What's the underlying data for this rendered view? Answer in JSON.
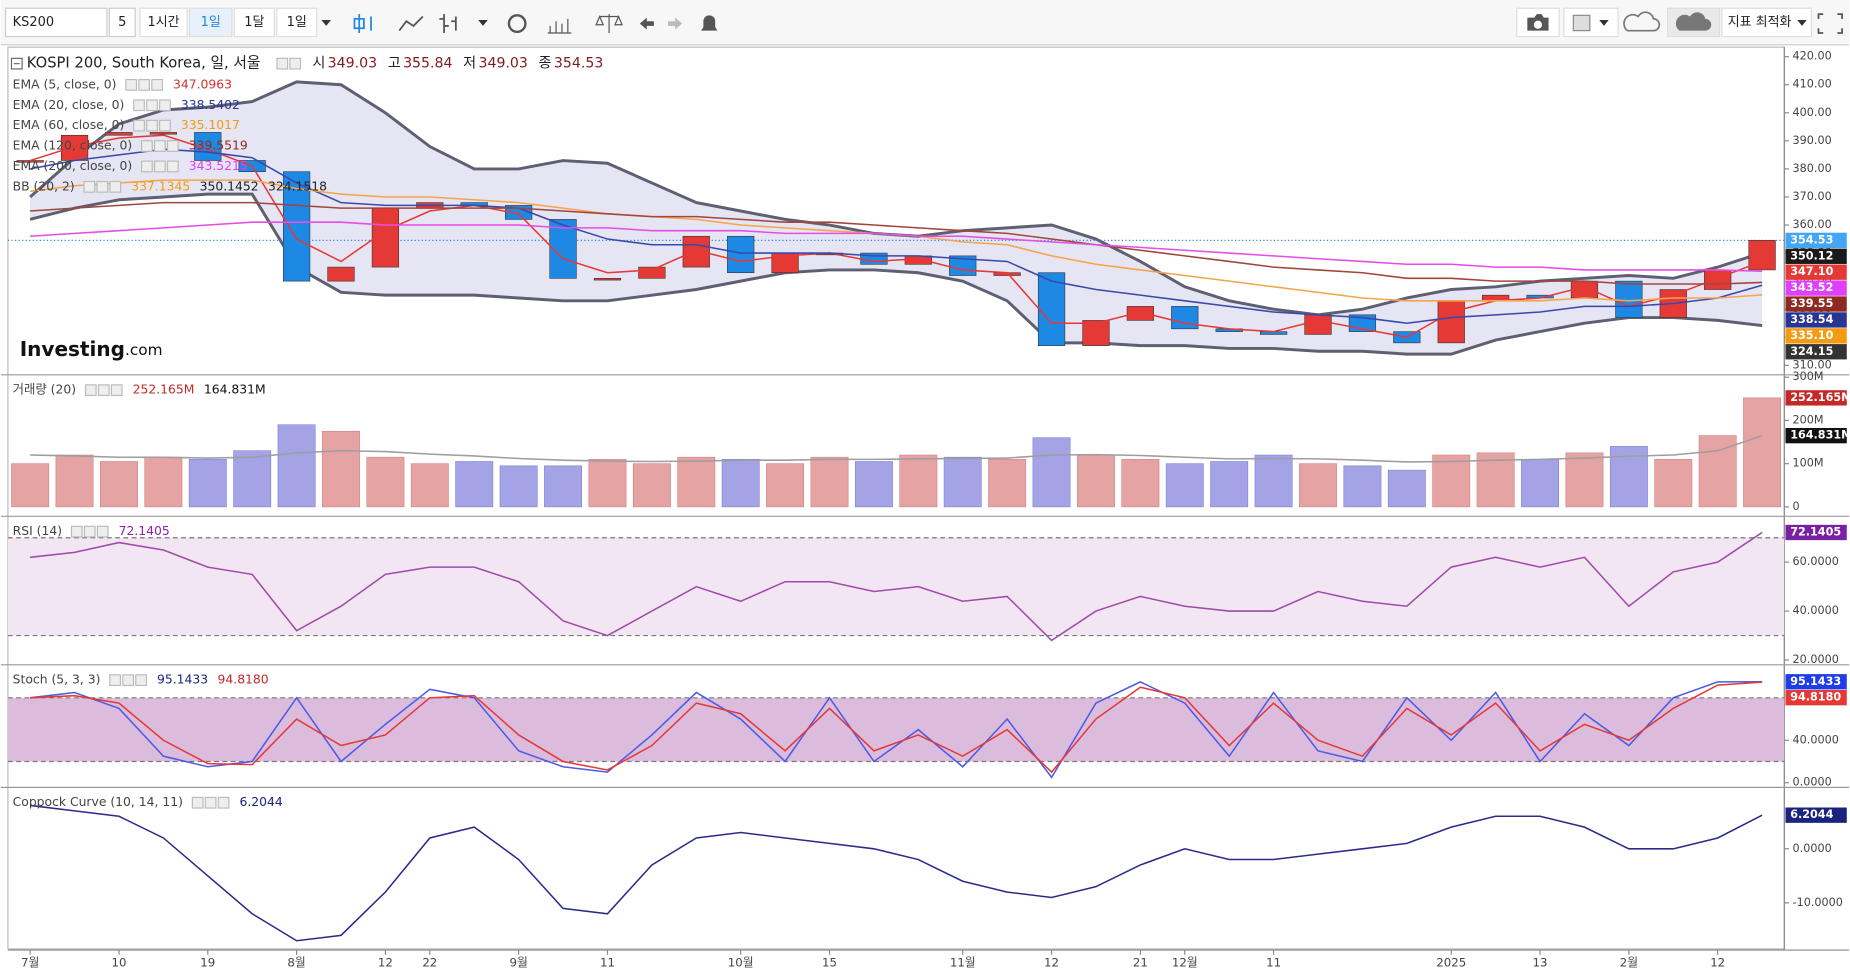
{
  "toolbar": {
    "symbol": "KS200",
    "interval": "5",
    "buttons": [
      "1시간",
      "1일",
      "1달",
      "1일"
    ],
    "right_button": "지표 최적화"
  },
  "watermark": [
    "Investing",
    ".com"
  ],
  "chart_data": [
    {
      "type": "candlestick",
      "title": "KOSPI 200, South Korea, 일, 서울",
      "ohlc_labels": [
        "시",
        "고",
        "저",
        "종"
      ],
      "ohlc_values": [
        349.03,
        355.84,
        349.03,
        354.53
      ],
      "categories": [
        "7월",
        null,
        "10",
        null,
        "19",
        null,
        "8월",
        null,
        "12",
        "22",
        null,
        "9월",
        null,
        "11",
        null,
        null,
        "10월",
        null,
        "15",
        null,
        null,
        "11월",
        null,
        "12",
        null,
        "21",
        "12월",
        null,
        "11",
        null,
        null,
        null,
        "2025",
        null,
        "13",
        null,
        "2월",
        null,
        "12",
        null
      ],
      "values": [
        383,
        392,
        393,
        393,
        383,
        379,
        340,
        345,
        366,
        368,
        367,
        362,
        341,
        341,
        345,
        356,
        343,
        350,
        350,
        346,
        349,
        342,
        343,
        317,
        326,
        331,
        323,
        322,
        321,
        328,
        322,
        318,
        333,
        335,
        334,
        340,
        327,
        337,
        344,
        354.53
      ],
      "up_color": "#e53935",
      "down_color": "#1e88e5",
      "ylim": [
        306.6,
        423.4
      ],
      "yticks": [
        {
          "value": 310,
          "label": "310.00"
        },
        {
          "value": 320,
          "label": "320.00"
        },
        {
          "value": 330,
          "label": "330.00"
        },
        {
          "value": 340,
          "label": "340.00"
        },
        {
          "value": 350,
          "label": "350.00"
        },
        {
          "value": 360,
          "label": "360.00"
        },
        {
          "value": 370,
          "label": "370.00"
        },
        {
          "value": 380,
          "label": "380.00"
        },
        {
          "value": 390,
          "label": "390.00"
        },
        {
          "value": 400,
          "label": "400.00"
        },
        {
          "value": 410,
          "label": "410.00"
        },
        {
          "value": 420,
          "label": "420.00"
        }
      ],
      "legend": [
        {
          "name": "EMA (5, close, 0)",
          "values": [
            347.0963
          ],
          "colors": [
            "#d32f2f"
          ]
        },
        {
          "name": "EMA (20, close, 0)",
          "values": [
            338.5402
          ],
          "colors": [
            "#283593"
          ]
        },
        {
          "name": "EMA (60, close, 0)",
          "values": [
            335.1017
          ],
          "colors": [
            "#f39c12"
          ]
        },
        {
          "name": "EMA (120, close, 0)",
          "values": [
            339.5519
          ],
          "colors": [
            "#8e2a22"
          ]
        },
        {
          "name": "EMA (200, close, 0)",
          "values": [
            343.5215
          ],
          "colors": [
            "#e040fb"
          ]
        },
        {
          "name": "BB (20, 2)",
          "values": [
            337.1345,
            350.1452,
            324.1518
          ],
          "colors": [
            "#f39c12",
            "#222222",
            "#222222"
          ]
        }
      ],
      "band": {
        "color": "#5f5f72",
        "fill": "#dcdcf0",
        "upper": [
          370,
          384,
          396,
          401,
          402,
          404,
          411,
          410,
          400,
          388,
          380,
          380,
          383,
          382,
          375,
          368,
          365,
          362,
          360,
          357,
          356,
          358,
          359,
          360,
          355,
          347,
          338,
          333,
          330,
          328,
          330,
          334,
          337,
          338,
          340,
          341,
          342,
          341,
          345,
          350.12
        ],
        "lower": [
          362,
          366,
          369,
          370,
          371,
          371,
          345,
          336,
          335,
          335,
          335,
          334,
          333,
          333,
          335,
          337,
          340,
          343,
          344,
          344,
          343,
          340,
          333,
          318,
          318,
          317,
          317,
          316,
          316,
          315,
          315,
          314,
          314,
          319,
          322,
          325,
          327,
          327,
          326,
          324.15
        ]
      },
      "series": [
        {
          "color": "#e53935",
          "values": [
            383,
            388,
            391,
            392,
            387,
            381,
            355,
            347,
            358,
            365,
            367,
            364,
            348,
            343,
            344,
            351,
            347,
            349,
            350,
            347,
            348,
            344,
            343,
            325,
            325,
            329,
            325,
            323,
            322,
            326,
            323,
            320,
            329,
            333,
            334,
            338,
            331,
            335,
            341,
            347.1
          ]
        },
        {
          "color": "#3949ab",
          "values": [
            380,
            383,
            385,
            387,
            386,
            384,
            375,
            368,
            367,
            367,
            367,
            366,
            360,
            355,
            353,
            353,
            350,
            350,
            350,
            349,
            349,
            348,
            347,
            340,
            337,
            335,
            333,
            331,
            329,
            328,
            327,
            325,
            327,
            328,
            329,
            331,
            331,
            332,
            334,
            338.54
          ]
        },
        {
          "color": "#f6a44a",
          "values": [
            372,
            374,
            375,
            376,
            376,
            376,
            373,
            371,
            370,
            370,
            369,
            368,
            366,
            364,
            363,
            362,
            360,
            359,
            358,
            357,
            356,
            354,
            353,
            349,
            346,
            344,
            342,
            340,
            338,
            336,
            334,
            333,
            333,
            333,
            333,
            334,
            333,
            334,
            334,
            335.1
          ]
        },
        {
          "color": "#a0463c",
          "values": [
            365,
            366,
            367,
            368,
            368,
            368,
            367,
            366,
            366,
            366,
            366,
            366,
            365,
            364,
            363,
            363,
            362,
            361,
            361,
            360,
            359,
            358,
            357,
            355,
            353,
            351,
            349,
            347,
            345,
            344,
            343,
            341,
            341,
            340,
            340,
            340,
            339,
            339,
            339,
            339.55
          ]
        },
        {
          "color": "#e64ce6",
          "values": [
            356,
            357,
            358,
            359,
            360,
            361,
            361,
            361,
            360,
            360,
            360,
            360,
            359,
            359,
            358,
            358,
            358,
            357,
            357,
            357,
            356,
            356,
            355,
            354,
            353,
            352,
            351,
            350,
            349,
            348,
            347,
            346,
            346,
            345,
            345,
            344,
            344,
            344,
            344,
            343.52
          ]
        }
      ],
      "tags": [
        {
          "value": 354.53,
          "color": "#42a5f5"
        },
        {
          "value": 350.12,
          "color": "#1a1a1a"
        },
        {
          "value": 347.1,
          "label": "347.10",
          "color": "#e53935"
        },
        {
          "value": 343.52,
          "color": "#e040fb"
        },
        {
          "value": 339.55,
          "color": "#8e2a22"
        },
        {
          "value": 338.54,
          "color": "#283593"
        },
        {
          "value": 335.1,
          "label": "335.10",
          "color": "#f39c12"
        },
        {
          "value": 324.15,
          "color": "#333333"
        }
      ]
    },
    {
      "type": "bar",
      "title": "거래량 (20)",
      "values": [
        100,
        120,
        105,
        115,
        110,
        130,
        190,
        175,
        115,
        100,
        105,
        95,
        95,
        110,
        100,
        115,
        110,
        100,
        115,
        105,
        120,
        115,
        110,
        160,
        120,
        110,
        100,
        105,
        120,
        100,
        95,
        85,
        120,
        125,
        110,
        125,
        140,
        110,
        165,
        252.165
      ],
      "up_color": "#e6a3a3",
      "down_color": "#a3a3e6",
      "ylim": [
        -19,
        300
      ],
      "yticks": [
        0,
        {
          "value": 100,
          "label": "100M"
        },
        {
          "value": 200,
          "label": "200M"
        },
        {
          "value": 300,
          "label": "300M"
        }
      ],
      "legend": [
        {
          "name": "거래량 (20)",
          "values": [
            {
              "value": 252.165,
              "label": "252.165M"
            },
            {
              "value": 164.831,
              "label": "164.831M"
            }
          ],
          "colors": [
            "#c62828",
            "#111111"
          ]
        }
      ],
      "series": [
        {
          "color": "#9e9e9e",
          "values": [
            120,
            118,
            115,
            115,
            113,
            115,
            125,
            130,
            128,
            122,
            118,
            112,
            108,
            106,
            105,
            106,
            108,
            108,
            110,
            110,
            111,
            112,
            113,
            120,
            121,
            119,
            115,
            111,
            112,
            111,
            108,
            104,
            105,
            108,
            110,
            113,
            117,
            120,
            130,
            164.831
          ]
        }
      ],
      "tags": [
        {
          "value": 252.165,
          "label": "252.165M",
          "color": "#c62828"
        },
        {
          "value": 164.831,
          "label": "164.831M",
          "color": "#111111"
        }
      ]
    },
    {
      "type": "line",
      "title": "RSI (14)",
      "ylim": [
        19,
        77.8
      ],
      "yticks": [
        {
          "value": 20,
          "label": "20.0000"
        },
        {
          "value": 40,
          "label": "40.0000"
        },
        {
          "value": 60,
          "label": "60.0000"
        }
      ],
      "levels": [
        30,
        70
      ],
      "level_fill": "#f3e6f3",
      "legend": [
        {
          "name": "RSI (14)",
          "values": [
            72.1405
          ],
          "colors": [
            "#8e24aa"
          ]
        }
      ],
      "series": [
        {
          "color": "#a04aac",
          "values": [
            62,
            64,
            68,
            65,
            58,
            55,
            32,
            42,
            55,
            58,
            58,
            52,
            36,
            30,
            40,
            50,
            44,
            52,
            52,
            48,
            50,
            44,
            46,
            28,
            40,
            46,
            42,
            40,
            40,
            48,
            44,
            42,
            58,
            62,
            58,
            62,
            42,
            56,
            60,
            72.1405
          ]
        }
      ],
      "tags": [
        {
          "value": 72.1405,
          "color": "#7b1fa2"
        }
      ]
    },
    {
      "type": "line",
      "title": "Stoch (5, 3, 3)",
      "ylim": [
        -4.4,
        108.9
      ],
      "yticks": [
        {
          "value": 0,
          "label": "0.0000"
        },
        {
          "value": 40,
          "label": "40.0000"
        }
      ],
      "levels": [
        20,
        80
      ],
      "level_fill": "#dcbcdc",
      "legend": [
        {
          "name": "Stoch (5, 3, 3)",
          "values": [
            95.1433,
            {
              "value": 94.818,
              "label": "94.8180"
            }
          ],
          "colors": [
            "#1a237e",
            "#c62828"
          ]
        }
      ],
      "series": [
        {
          "color": "#4b5be8",
          "values": [
            80,
            85,
            70,
            25,
            15,
            20,
            80,
            20,
            55,
            88,
            80,
            30,
            15,
            10,
            45,
            85,
            60,
            20,
            80,
            20,
            50,
            15,
            60,
            5,
            75,
            95,
            75,
            25,
            85,
            30,
            20,
            80,
            40,
            85,
            20,
            65,
            35,
            80,
            95,
            95.1433
          ]
        },
        {
          "color": "#e53935",
          "values": [
            80,
            82,
            75,
            40,
            18,
            17,
            60,
            35,
            45,
            80,
            82,
            45,
            20,
            12,
            35,
            75,
            65,
            30,
            70,
            30,
            45,
            25,
            50,
            10,
            60,
            90,
            80,
            35,
            75,
            40,
            25,
            70,
            45,
            75,
            30,
            55,
            40,
            70,
            92,
            94.818
          ]
        }
      ],
      "tags": [
        {
          "value": 95.1433,
          "color": "#1e3de8"
        },
        {
          "value": 94.818,
          "label": "94.8180",
          "color": "#e53935"
        }
      ]
    },
    {
      "type": "line",
      "title": "Coppock Curve (10, 14, 11)",
      "ylim": [
        -18.5,
        10.9
      ],
      "yticks": [
        {
          "value": -10,
          "label": "-10.0000"
        },
        {
          "value": 0,
          "label": "0.0000"
        }
      ],
      "legend": [
        {
          "name": "Coppock Curve (10, 14, 11)",
          "values": [
            6.2044
          ],
          "colors": [
            "#1a237e"
          ]
        }
      ],
      "series": [
        {
          "color": "#2b2b8c",
          "values": [
            8,
            7,
            6,
            2,
            -5,
            -12,
            -17,
            -16,
            -8,
            2,
            4,
            -2,
            -11,
            -12,
            -3,
            2,
            3,
            2,
            1,
            0,
            -2,
            -6,
            -8,
            -9,
            -7,
            -3,
            0,
            -2,
            -2,
            -1,
            0,
            1,
            4,
            6,
            6,
            4,
            0,
            0,
            2,
            6.2044
          ]
        }
      ],
      "tags": [
        {
          "value": 6.2044,
          "color": "#1a237e"
        }
      ]
    }
  ]
}
